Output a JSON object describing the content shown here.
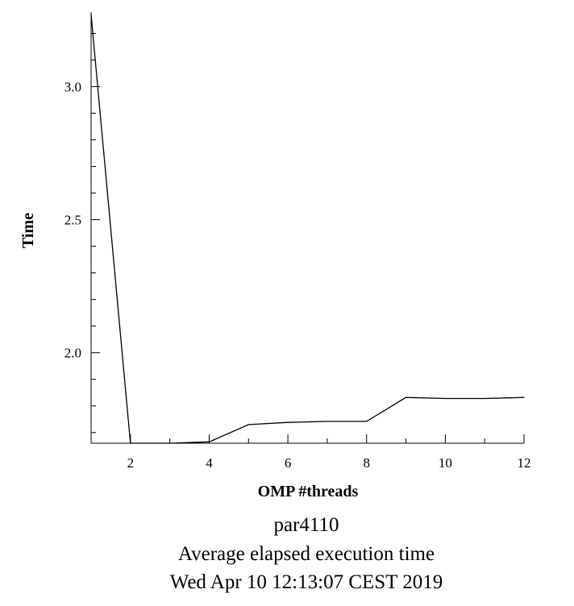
{
  "chart_data": {
    "type": "line",
    "xlabel": "OMP #threads",
    "ylabel": "Time",
    "xlim": [
      1,
      12
    ],
    "ylim": [
      1.66,
      3.28
    ],
    "x_ticks": [
      2,
      4,
      6,
      8,
      10,
      12
    ],
    "x_tick_labels": [
      "2",
      "4",
      "6",
      "8",
      "10",
      "12"
    ],
    "y_ticks": [
      2.0,
      2.5,
      3.0
    ],
    "y_tick_labels": [
      "2.0",
      "2.5",
      "3.0"
    ],
    "grid": false,
    "series": [
      {
        "x": [
          1,
          2,
          3,
          4,
          5,
          6,
          7,
          8,
          9,
          10,
          11,
          12
        ],
        "y": [
          3.27,
          1.66,
          1.66,
          1.665,
          1.73,
          1.738,
          1.742,
          1.742,
          1.832,
          1.828,
          1.828,
          1.832
        ],
        "color": "#000000"
      }
    ]
  },
  "caption": {
    "line1": "par4110",
    "line2": "Average elapsed execution time",
    "line3": "Wed Apr 10 12:13:07 CEST 2019"
  }
}
